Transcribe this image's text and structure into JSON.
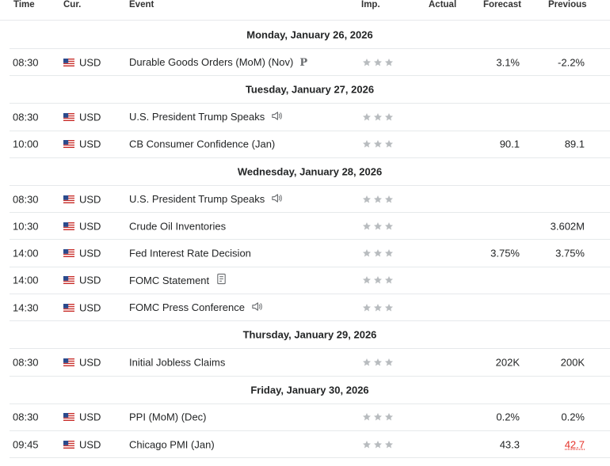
{
  "header": {
    "time": "Time",
    "currency": "Cur.",
    "event": "Event",
    "importance": "Imp.",
    "actual": "Actual",
    "forecast": "Forecast",
    "previous": "Previous"
  },
  "days": [
    {
      "date": "Monday, January 26, 2026",
      "events": [
        {
          "time": "08:30",
          "currency": "USD",
          "event": "Durable Goods Orders (MoM) (Nov)",
          "icon": "preliminary-icon",
          "forecast": "3.1%",
          "previous": "-2.2%"
        }
      ]
    },
    {
      "date": "Tuesday, January 27, 2026",
      "events": [
        {
          "time": "08:30",
          "currency": "USD",
          "event": "U.S. President Trump Speaks",
          "icon": "speaker-icon",
          "forecast": "",
          "previous": ""
        },
        {
          "time": "10:00",
          "currency": "USD",
          "event": "CB Consumer Confidence  (Jan)",
          "icon": "",
          "forecast": "90.1",
          "previous": "89.1"
        }
      ]
    },
    {
      "date": "Wednesday, January 28, 2026",
      "events": [
        {
          "time": "08:30",
          "currency": "USD",
          "event": "U.S. President Trump Speaks",
          "icon": "speaker-icon",
          "forecast": "",
          "previous": ""
        },
        {
          "time": "10:30",
          "currency": "USD",
          "event": "Crude Oil Inventories",
          "icon": "",
          "forecast": "",
          "previous": "3.602M"
        },
        {
          "time": "14:00",
          "currency": "USD",
          "event": "Fed Interest Rate Decision",
          "icon": "",
          "forecast": "3.75%",
          "previous": "3.75%"
        },
        {
          "time": "14:00",
          "currency": "USD",
          "event": "FOMC Statement",
          "icon": "document-icon",
          "forecast": "",
          "previous": ""
        },
        {
          "time": "14:30",
          "currency": "USD",
          "event": "FOMC Press Conference",
          "icon": "speaker-icon",
          "forecast": "",
          "previous": ""
        }
      ]
    },
    {
      "date": "Thursday, January 29, 2026",
      "events": [
        {
          "time": "08:30",
          "currency": "USD",
          "event": "Initial Jobless Claims",
          "icon": "",
          "forecast": "202K",
          "previous": "200K"
        }
      ]
    },
    {
      "date": "Friday, January 30, 2026",
      "events": [
        {
          "time": "08:30",
          "currency": "USD",
          "event": "PPI (MoM) (Dec)",
          "icon": "",
          "forecast": "0.2%",
          "previous": "0.2%"
        },
        {
          "time": "09:45",
          "currency": "USD",
          "event": "Chicago PMI  (Jan)",
          "icon": "",
          "forecast": "43.3",
          "previous": "42.7",
          "previous_negative": true
        }
      ]
    }
  ],
  "colors": {
    "star_gray": "#b8bcbf",
    "negative_red": "#e5332a",
    "divider": "#e6e9eb",
    "text": "#232526"
  }
}
